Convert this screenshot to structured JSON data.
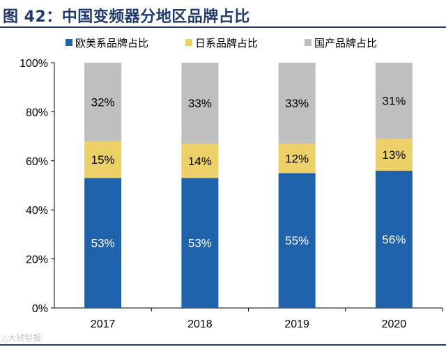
{
  "title": "图 42：中国变频器分地区品牌占比",
  "watermark": "△大钱智报",
  "colors": {
    "europe_us": "#1f63ad",
    "japan": "#ecd068",
    "domestic": "#bfbfbf",
    "axis": "#000000",
    "title": "#1f3a6b"
  },
  "chart_data": {
    "type": "bar",
    "stacked": true,
    "categories": [
      "2017",
      "2018",
      "2019",
      "2020"
    ],
    "series": [
      {
        "name": "欧美系品牌占比",
        "values": [
          53,
          53,
          55,
          56
        ],
        "labels": [
          "53%",
          "53%",
          "55%",
          "56%"
        ],
        "color": "#1f63ad",
        "label_color": "#ffffff"
      },
      {
        "name": "日系品牌占比",
        "values": [
          15,
          14,
          12,
          13
        ],
        "labels": [
          "15%",
          "14%",
          "12%",
          "13%"
        ],
        "color": "#ecd068",
        "label_color": "#000000"
      },
      {
        "name": "国产品牌占比",
        "values": [
          32,
          33,
          33,
          31
        ],
        "labels": [
          "32%",
          "33%",
          "33%",
          "31%"
        ],
        "color": "#bfbfbf",
        "label_color": "#000000"
      }
    ],
    "ylim": [
      0,
      100
    ],
    "yticks": [
      0,
      20,
      40,
      60,
      80,
      100
    ],
    "ytick_labels": [
      "0%",
      "20%",
      "40%",
      "60%",
      "80%",
      "100%"
    ],
    "legend_position": "top",
    "grid": false
  }
}
